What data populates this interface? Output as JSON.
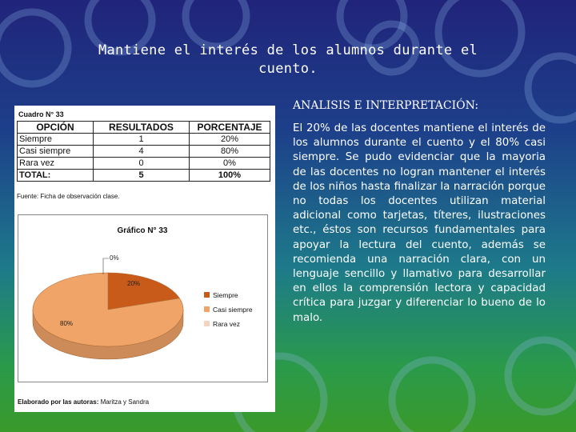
{
  "slide": {
    "title_line1": "Mantiene el interés de los alumnos durante el",
    "title_line2": "cuento.",
    "heading": "ANALISIS E INTERPRETACIÓN:",
    "body": "El 20% de las docentes mantiene el interés de los alumnos durante el cuento y el 80% casi siempre. Se pudo evidenciar que la mayoria de las docentes no logran mantener el interés de los niños hasta finalizar la narración porque no todas los docentes utilizan material adicional como tarjetas, títeres, ilustraciones etc., éstos son recursos fundamentales para apoyar la lectura del cuento, además se recomienda una narración clara, con un lenguaje sencillo y llamativo para desarrollar en ellos la comprensión lectora y capacidad crítica para juzgar y diferenciar lo bueno de lo malo."
  },
  "document": {
    "cuadro_label": "Cuadro N° 33",
    "table": {
      "headers": [
        "OPCIÓN",
        "RESULTADOS",
        "PORCENTAJE"
      ],
      "rows": [
        [
          "Siempre",
          "1",
          "20%"
        ],
        [
          "Casi siempre",
          "4",
          "80%"
        ],
        [
          "Rara vez",
          "0",
          "0%"
        ]
      ],
      "total": [
        "TOTAL:",
        "5",
        "100%"
      ]
    },
    "source_note": "Fuente: Ficha de observación clase.",
    "elaborado_label": "Elaborado por las autoras:",
    "elaborado_names": "Maritza y Sandra"
  },
  "chart_data": {
    "type": "pie",
    "title": "Gráfico N° 33",
    "categories": [
      "Siempre",
      "Casi siempre",
      "Rara vez"
    ],
    "values": [
      20,
      80,
      0
    ],
    "data_labels": [
      "20%",
      "80%",
      "0%"
    ],
    "colors": [
      "#c85a1a",
      "#f0a468",
      "#f6d3c0"
    ],
    "legend_position": "right"
  }
}
